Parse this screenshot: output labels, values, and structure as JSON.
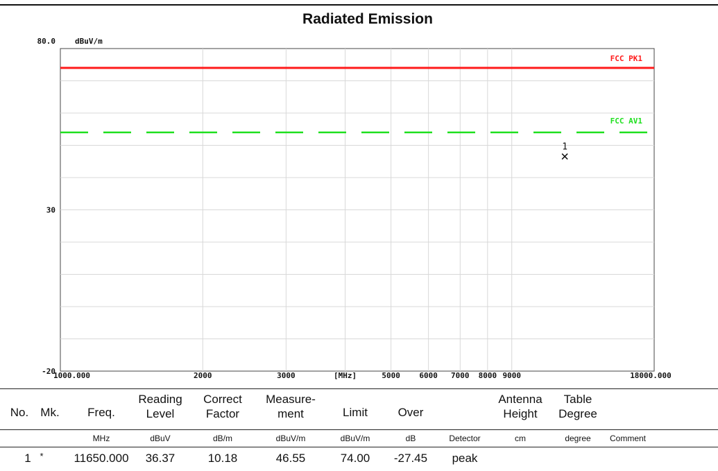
{
  "chart_data": {
    "type": "line",
    "title": "Radiated Emission",
    "ylabel": "dBuV/m",
    "xlabel": "[MHz]",
    "x_scale": "log",
    "xlim": [
      1000,
      18000
    ],
    "ylim": [
      -20,
      80
    ],
    "y_tick_labels": [
      "80.0",
      "30",
      "-20"
    ],
    "x_tick_labels": [
      "1000.000",
      "2000",
      "3000",
      "[MHz]",
      "5000",
      "6000",
      "7000",
      "8000",
      "9000",
      "18000.000"
    ],
    "grid": true,
    "series": [
      {
        "name": "FCC PK1",
        "color": "#ff1a1a",
        "style": "solid",
        "level": 74
      },
      {
        "name": "FCC AV1",
        "color": "#1fe01f",
        "style": "dashed",
        "level": 54
      }
    ],
    "markers": [
      {
        "label": "1",
        "x": 11650,
        "y": 46.55
      }
    ]
  },
  "table": {
    "headers": [
      {
        "l1": "No.",
        "l2": ""
      },
      {
        "l1": "Mk.",
        "l2": ""
      },
      {
        "l1": "Freq.",
        "l2": ""
      },
      {
        "l1": "Reading",
        "l2": "Level"
      },
      {
        "l1": "Correct",
        "l2": "Factor"
      },
      {
        "l1": "Measure-",
        "l2": "ment"
      },
      {
        "l1": "Limit",
        "l2": ""
      },
      {
        "l1": "Over",
        "l2": ""
      },
      {
        "l1": "",
        "l2": ""
      },
      {
        "l1": "Antenna",
        "l2": "Height"
      },
      {
        "l1": "Table",
        "l2": "Degree"
      }
    ],
    "units": [
      "MHz",
      "dBuV",
      "dB/m",
      "dBuV/m",
      "dBuV/m",
      "dB",
      "Detector",
      "cm",
      "degree",
      "Comment"
    ],
    "rows": [
      {
        "no": "1",
        "mk": "*",
        "freq": "11650.000",
        "reading": "36.37",
        "correct": "10.18",
        "measurement": "46.55",
        "limit": "74.00",
        "over": "-27.45",
        "detector": "peak",
        "height": "",
        "degree": "",
        "comment": ""
      }
    ]
  }
}
